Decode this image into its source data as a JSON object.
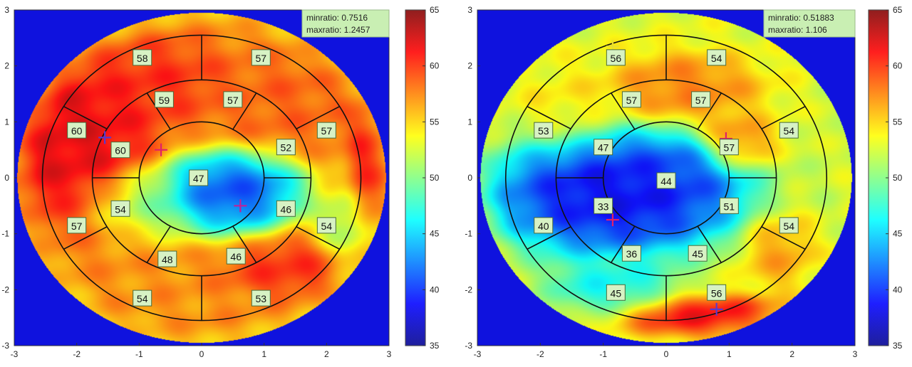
{
  "chart_data": [
    {
      "type": "heatmap",
      "title": "",
      "xlabel": "",
      "ylabel": "",
      "xlim": [
        -3,
        3
      ],
      "ylim": [
        -3,
        3
      ],
      "xticks": [
        "-3",
        "-2",
        "-1",
        "0",
        "1",
        "2",
        "3"
      ],
      "yticks": [
        "3",
        "2",
        "1",
        "0",
        "-1",
        "-2",
        "-3"
      ],
      "colorbar": {
        "min": 35,
        "max": 65,
        "ticks": [
          "65",
          "60",
          "55",
          "50",
          "45",
          "40",
          "35"
        ]
      },
      "info": [
        "minratio: 0.7516",
        "maxratio: 1.2457"
      ],
      "segments": [
        {
          "value": "58",
          "x": -0.95,
          "y": 2.15
        },
        {
          "value": "57",
          "x": 0.95,
          "y": 2.15
        },
        {
          "value": "60",
          "x": -2.0,
          "y": 0.85
        },
        {
          "value": "57",
          "x": 2.0,
          "y": 0.85
        },
        {
          "value": "57",
          "x": -2.0,
          "y": -0.85
        },
        {
          "value": "54",
          "x": 2.0,
          "y": -0.85
        },
        {
          "value": "54",
          "x": -0.95,
          "y": -2.15
        },
        {
          "value": "53",
          "x": 0.95,
          "y": -2.15
        },
        {
          "value": "59",
          "x": -0.6,
          "y": 1.4
        },
        {
          "value": "57",
          "x": 0.5,
          "y": 1.4
        },
        {
          "value": "60",
          "x": -1.3,
          "y": 0.5
        },
        {
          "value": "52",
          "x": 1.35,
          "y": 0.55
        },
        {
          "value": "54",
          "x": -1.3,
          "y": -0.55
        },
        {
          "value": "46",
          "x": 1.35,
          "y": -0.55
        },
        {
          "value": "48",
          "x": -0.55,
          "y": -1.45
        },
        {
          "value": "46",
          "x": 0.55,
          "y": -1.4
        },
        {
          "value": "47",
          "x": -0.05,
          "y": 0.0
        }
      ],
      "markers": [
        {
          "x": -0.65,
          "y": 0.5,
          "color": "#e0206a"
        },
        {
          "x": 0.62,
          "y": -0.5,
          "color": "#c0209a"
        },
        {
          "x": -1.55,
          "y": 0.72,
          "color": "#5a3acc"
        }
      ],
      "field": {
        "bg": 38,
        "wall": 57,
        "blobs": [
          {
            "x": -2.1,
            "y": 0.7,
            "rx": 1.2,
            "ry": 1.3,
            "v": 63,
            "w": 0.85
          },
          {
            "x": -0.7,
            "y": 1.75,
            "rx": 1.0,
            "ry": 0.7,
            "v": 61,
            "w": 0.6
          },
          {
            "x": 1.3,
            "y": 1.4,
            "rx": 1.4,
            "ry": 0.9,
            "v": 59,
            "w": 0.5
          },
          {
            "x": 0.45,
            "y": -0.25,
            "rx": 1.05,
            "ry": 0.65,
            "v": 38,
            "w": 0.9
          },
          {
            "x": -0.9,
            "y": -0.4,
            "rx": 0.9,
            "ry": 0.6,
            "v": 49,
            "w": 0.5
          },
          {
            "x": 1.4,
            "y": -1.6,
            "rx": 0.9,
            "ry": 0.5,
            "v": 61,
            "w": 0.6
          },
          {
            "x": 2.7,
            "y": 0.3,
            "rx": 0.3,
            "ry": 1.4,
            "v": 62,
            "w": 0.55
          },
          {
            "x": 2.3,
            "y": -0.9,
            "rx": 0.5,
            "ry": 0.7,
            "v": 48,
            "w": 0.35
          }
        ]
      }
    },
    {
      "type": "heatmap",
      "title": "",
      "xlabel": "",
      "ylabel": "",
      "xlim": [
        -3,
        3
      ],
      "ylim": [
        -3,
        3
      ],
      "xticks": [
        "-3",
        "-2",
        "-1",
        "0",
        "1",
        "2",
        "3"
      ],
      "yticks": [
        "3",
        "2",
        "1",
        "0",
        "-1",
        "-2",
        "-3"
      ],
      "colorbar": {
        "min": 35,
        "max": 65,
        "ticks": [
          "65",
          "60",
          "55",
          "50",
          "45",
          "40",
          "35"
        ]
      },
      "info": [
        "minratio: 0.51883",
        "maxratio: 1.106"
      ],
      "segments": [
        {
          "value": "56",
          "x": -0.8,
          "y": 2.15
        },
        {
          "value": "54",
          "x": 0.8,
          "y": 2.15
        },
        {
          "value": "53",
          "x": -1.95,
          "y": 0.85
        },
        {
          "value": "54",
          "x": 1.95,
          "y": 0.85
        },
        {
          "value": "40",
          "x": -1.95,
          "y": -0.85
        },
        {
          "value": "54",
          "x": 1.95,
          "y": -0.85
        },
        {
          "value": "45",
          "x": -0.8,
          "y": -2.05
        },
        {
          "value": "56",
          "x": 0.8,
          "y": -2.05
        },
        {
          "value": "57",
          "x": -0.55,
          "y": 1.4
        },
        {
          "value": "57",
          "x": 0.55,
          "y": 1.4
        },
        {
          "value": "47",
          "x": -1.0,
          "y": 0.55
        },
        {
          "value": "57",
          "x": 1.0,
          "y": 0.55
        },
        {
          "value": "33",
          "x": -1.0,
          "y": -0.5
        },
        {
          "value": "51",
          "x": 1.0,
          "y": -0.5
        },
        {
          "value": "36",
          "x": -0.55,
          "y": -1.35
        },
        {
          "value": "45",
          "x": 0.5,
          "y": -1.35
        },
        {
          "value": "44",
          "x": 0.0,
          "y": -0.05
        }
      ],
      "markers": [
        {
          "x": -0.85,
          "y": -0.75,
          "color": "#e0206a"
        },
        {
          "x": 0.95,
          "y": 0.7,
          "color": "#e0206a"
        },
        {
          "x": 0.8,
          "y": -2.35,
          "color": "#5a3acc"
        },
        {
          "x": -0.85,
          "y": 2.35,
          "color": "#e8e030"
        }
      ],
      "field": {
        "bg": 38,
        "wall": 53,
        "blobs": [
          {
            "x": -0.8,
            "y": -0.3,
            "rx": 1.75,
            "ry": 0.95,
            "v": 36,
            "w": 1.0
          },
          {
            "x": 0.2,
            "y": 0.1,
            "rx": 0.9,
            "ry": 0.6,
            "v": 40,
            "w": 0.5
          },
          {
            "x": 0.3,
            "y": 1.6,
            "rx": 1.1,
            "ry": 0.6,
            "v": 59,
            "w": 0.55
          },
          {
            "x": 1.1,
            "y": 0.6,
            "rx": 0.6,
            "ry": 0.5,
            "v": 60,
            "w": 0.45
          },
          {
            "x": 0.7,
            "y": -2.5,
            "rx": 1.3,
            "ry": 0.35,
            "v": 63,
            "w": 0.8
          },
          {
            "x": -0.9,
            "y": -1.95,
            "rx": 1.0,
            "ry": 0.5,
            "v": 45,
            "w": 0.55
          },
          {
            "x": 1.8,
            "y": -1.3,
            "rx": 0.6,
            "ry": 0.7,
            "v": 58,
            "w": 0.4
          },
          {
            "x": -1.6,
            "y": 1.2,
            "rx": 0.8,
            "ry": 0.8,
            "v": 55,
            "w": 0.3
          },
          {
            "x": 2.6,
            "y": 0.5,
            "rx": 0.4,
            "ry": 1.6,
            "v": 52,
            "w": 0.4
          }
        ]
      }
    }
  ]
}
